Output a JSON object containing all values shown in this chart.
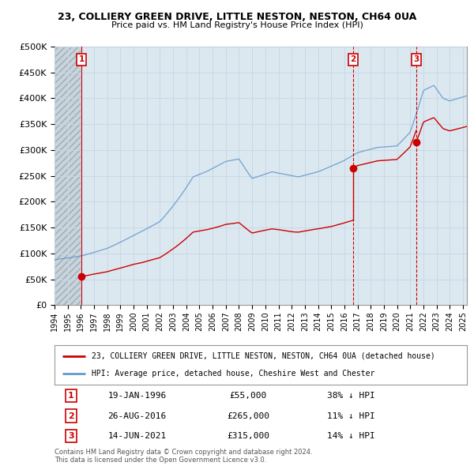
{
  "title": "23, COLLIERY GREEN DRIVE, LITTLE NESTON, NESTON, CH64 0UA",
  "subtitle": "Price paid vs. HM Land Registry's House Price Index (HPI)",
  "red_line_label": "23, COLLIERY GREEN DRIVE, LITTLE NESTON, NESTON, CH64 0UA (detached house)",
  "blue_line_label": "HPI: Average price, detached house, Cheshire West and Chester",
  "purchases": [
    {
      "label": "1",
      "date": "19-JAN-1996",
      "price": 55000,
      "note": "38% ↓ HPI",
      "x": 1996.05
    },
    {
      "label": "2",
      "date": "26-AUG-2016",
      "price": 265000,
      "note": "11% ↓ HPI",
      "x": 2016.65
    },
    {
      "label": "3",
      "date": "14-JUN-2021",
      "price": 315000,
      "note": "14% ↓ HPI",
      "x": 2021.45
    }
  ],
  "footer": "Contains HM Land Registry data © Crown copyright and database right 2024.\nThis data is licensed under the Open Government Licence v3.0.",
  "ylim": [
    0,
    500000
  ],
  "yticks": [
    0,
    50000,
    100000,
    150000,
    200000,
    250000,
    300000,
    350000,
    400000,
    450000,
    500000
  ],
  "xlim": [
    1994.0,
    2025.3
  ],
  "xticks": [
    1994,
    1995,
    1996,
    1997,
    1998,
    1999,
    2000,
    2001,
    2002,
    2003,
    2004,
    2005,
    2006,
    2007,
    2008,
    2009,
    2010,
    2011,
    2012,
    2013,
    2014,
    2015,
    2016,
    2017,
    2018,
    2019,
    2020,
    2021,
    2022,
    2023,
    2024,
    2025
  ],
  "grid_color": "#c8d8e8",
  "background_color": "#dce8f0",
  "red_color": "#cc0000",
  "blue_color": "#6699cc",
  "hatch_color": "#c0c8d0"
}
